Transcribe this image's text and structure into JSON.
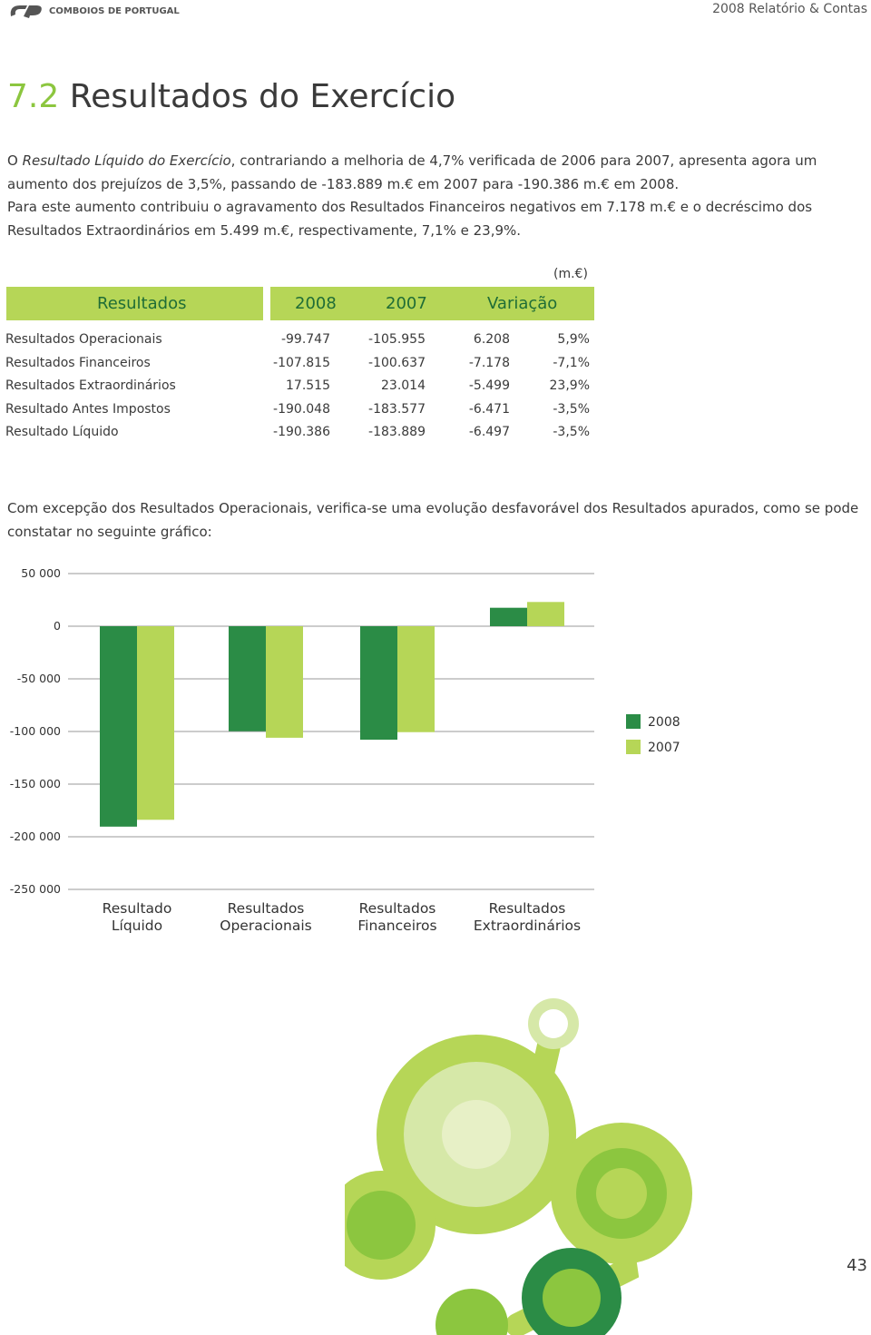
{
  "header": {
    "logo": "COMBOIOS DE PORTUGAL",
    "report": "2008 Relatório & Contas"
  },
  "title": {
    "number": "7.2",
    "text": "Resultados do Exercício"
  },
  "intro": {
    "parts": [
      "O ",
      "Resultado Líquido do Exercício",
      ", contrariando a melhoria de 4,7% verificada de 2006 para 2007, apresenta agora um aumento dos prejuízos de 3,5%, passando de -183.889 m.€ em 2007 para -190.386 m.€ em 2008.",
      "Para este aumento contribuiu o agravamento dos Resultados Financeiros negativos em 7.178 m.€ e o decréscimo dos Resultados Extraordinários em 5.499 m.€, respectivamente, 7,1% e 23,9%."
    ]
  },
  "table": {
    "unit": "(m.€)",
    "header": [
      "Resultados",
      "2008",
      "2007",
      "Variação"
    ],
    "rows": [
      [
        "Resultados Operacionais",
        "-99.747",
        "-105.955",
        "6.208",
        "5,9%"
      ],
      [
        "Resultados Financeiros",
        "-107.815",
        "-100.637",
        "-7.178",
        "-7,1%"
      ],
      [
        "Resultados Extraordinários",
        "17.515",
        "23.014",
        "-5.499",
        "23,9%"
      ],
      [
        "Resultado Antes Impostos",
        "-190.048",
        "-183.577",
        "-6.471",
        "-3,5%"
      ],
      [
        "Resultado Líquido",
        "-190.386",
        "-183.889",
        "-6.497",
        "-3,5%"
      ]
    ]
  },
  "chart_text": "Com excepção dos Resultados Operacionais, verifica-se uma evolução desfavorável dos Resultados apurados, como se pode constatar no seguinte gráfico:",
  "chart_data": {
    "type": "bar",
    "categories": [
      "Resultado Líquido",
      "Resultados Operacionais",
      "Resultados Financeiros",
      "Resultados Extraordinários"
    ],
    "series": [
      {
        "name": "2008",
        "color": "#2b8c46",
        "values": [
          -190386,
          -99747,
          -107815,
          17515
        ]
      },
      {
        "name": "2007",
        "color": "#b6d657",
        "values": [
          -183889,
          -105955,
          -100637,
          23014
        ]
      }
    ],
    "ylim": [
      -250000,
      50000
    ],
    "yticks": [
      {
        "value": 50000,
        "label": "50 000"
      },
      0,
      {
        "value": -50000,
        "label": "-50 000"
      },
      {
        "value": -100000,
        "label": "-100 000"
      },
      {
        "value": -150000,
        "label": "-150 000"
      },
      {
        "value": -200000,
        "label": "-200 000"
      },
      {
        "value": -250000,
        "label": "-250 000"
      }
    ],
    "grid": true,
    "legend": "right"
  },
  "page_number": "43"
}
